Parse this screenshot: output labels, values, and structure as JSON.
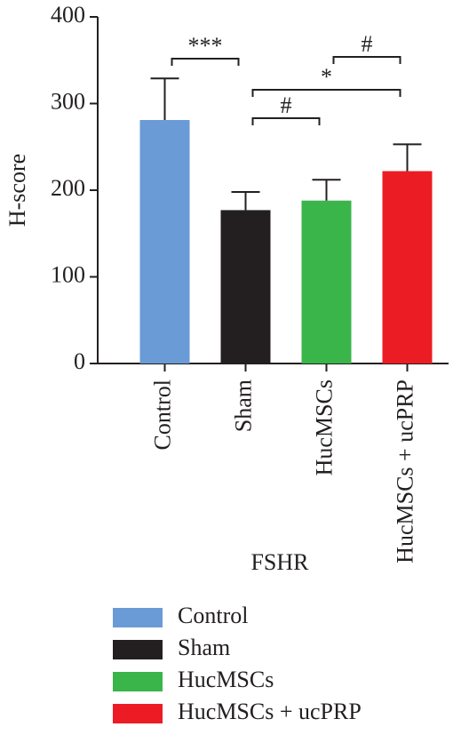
{
  "chart_data": {
    "type": "bar",
    "y_label": "H-score",
    "x_label": "FSHR",
    "categories": [
      "Control",
      "Sham",
      "HucMSCs",
      "HucMSCs + ucPRP"
    ],
    "values": [
      281,
      177,
      188,
      222
    ],
    "errors": [
      48,
      21,
      24,
      31
    ],
    "colors": [
      "#6a9bd6",
      "#231f20",
      "#3ab54a",
      "#ec1c24"
    ],
    "ylim": [
      0,
      400
    ],
    "yticks": [
      0,
      100,
      200,
      300,
      400
    ],
    "annotations": [
      {
        "text": "***",
        "from": 0,
        "to": 1
      },
      {
        "text": "#",
        "from": 2,
        "to": 3
      },
      {
        "text": "*",
        "from": 1,
        "to": 3
      },
      {
        "text": "#",
        "from": 1,
        "to": 2
      }
    ],
    "legend": true
  }
}
